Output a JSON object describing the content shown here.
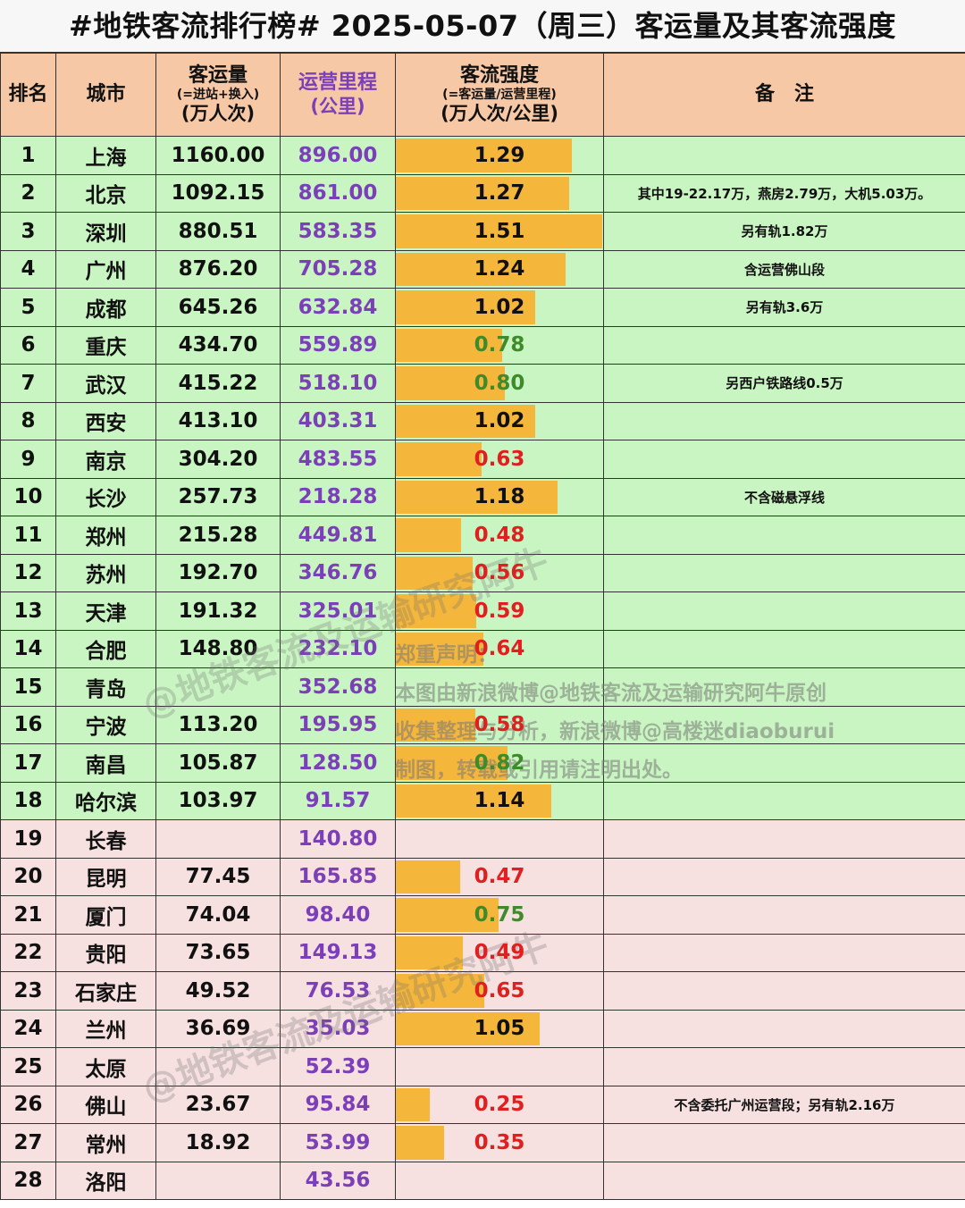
{
  "title": "#地铁客流排行榜# 2025-05-07（周三）客运量及其客流强度",
  "headers": {
    "rank": "排名",
    "city": "城市",
    "volume": "客运量",
    "volume_sub": "(=进站+换入)",
    "volume_unit": "(万人次)",
    "km": "运营里程",
    "km_unit": "(公里)",
    "intensity": "客流强度",
    "intensity_sub": "(=客运量/运营里程)",
    "intensity_unit": "(万人次/公里)",
    "note": "备　注"
  },
  "colors": {
    "header_bg": "#f6c8a6",
    "group_green": "#c9f5c2",
    "group_pink": "#f6e0e0",
    "bar": "#f5b73b",
    "km_text": "#7b3fb8",
    "intensity_high": "#111111",
    "intensity_mid": "#3f8a2a",
    "intensity_low": "#e02020"
  },
  "chart_data": {
    "type": "table",
    "title": "#地铁客流排行榜# 2025-05-07（周三）客运量及其客流强度",
    "bar_scale_max": 1.51,
    "rows": [
      {
        "rank": "1",
        "city": "上海",
        "volume": "1160.00",
        "km": "896.00",
        "intensity": "1.29",
        "value": 1.29,
        "group": "green",
        "note": ""
      },
      {
        "rank": "2",
        "city": "北京",
        "volume": "1092.15",
        "km": "861.00",
        "intensity": "1.27",
        "value": 1.27,
        "group": "green",
        "note": "其中19-22.17万，燕房2.79万，大机5.03万。"
      },
      {
        "rank": "3",
        "city": "深圳",
        "volume": "880.51",
        "km": "583.35",
        "intensity": "1.51",
        "value": 1.51,
        "group": "green",
        "note": "另有轨1.82万"
      },
      {
        "rank": "4",
        "city": "广州",
        "volume": "876.20",
        "km": "705.28",
        "intensity": "1.24",
        "value": 1.24,
        "group": "green",
        "note": "含运营佛山段"
      },
      {
        "rank": "5",
        "city": "成都",
        "volume": "645.26",
        "km": "632.84",
        "intensity": "1.02",
        "value": 1.02,
        "group": "green",
        "note": "另有轨3.6万"
      },
      {
        "rank": "6",
        "city": "重庆",
        "volume": "434.70",
        "km": "559.89",
        "intensity": "0.78",
        "value": 0.78,
        "group": "green",
        "note": ""
      },
      {
        "rank": "7",
        "city": "武汉",
        "volume": "415.22",
        "km": "518.10",
        "intensity": "0.80",
        "value": 0.8,
        "group": "green",
        "note": "另西户铁路线0.5万"
      },
      {
        "rank": "8",
        "city": "西安",
        "volume": "413.10",
        "km": "403.31",
        "intensity": "1.02",
        "value": 1.02,
        "group": "green",
        "note": ""
      },
      {
        "rank": "9",
        "city": "南京",
        "volume": "304.20",
        "km": "483.55",
        "intensity": "0.63",
        "value": 0.63,
        "group": "green",
        "note": ""
      },
      {
        "rank": "10",
        "city": "长沙",
        "volume": "257.73",
        "km": "218.28",
        "intensity": "1.18",
        "value": 1.18,
        "group": "green",
        "note": "不含磁悬浮线"
      },
      {
        "rank": "11",
        "city": "郑州",
        "volume": "215.28",
        "km": "449.81",
        "intensity": "0.48",
        "value": 0.48,
        "group": "green",
        "note": ""
      },
      {
        "rank": "12",
        "city": "苏州",
        "volume": "192.70",
        "km": "346.76",
        "intensity": "0.56",
        "value": 0.56,
        "group": "green",
        "note": ""
      },
      {
        "rank": "13",
        "city": "天津",
        "volume": "191.32",
        "km": "325.01",
        "intensity": "0.59",
        "value": 0.59,
        "group": "green",
        "note": ""
      },
      {
        "rank": "14",
        "city": "合肥",
        "volume": "148.80",
        "km": "232.10",
        "intensity": "0.64",
        "value": 0.64,
        "group": "green",
        "note": ""
      },
      {
        "rank": "15",
        "city": "青岛",
        "volume": "",
        "km": "352.68",
        "intensity": "",
        "value": null,
        "group": "green",
        "note": ""
      },
      {
        "rank": "16",
        "city": "宁波",
        "volume": "113.20",
        "km": "195.95",
        "intensity": "0.58",
        "value": 0.58,
        "group": "green",
        "note": ""
      },
      {
        "rank": "17",
        "city": "南昌",
        "volume": "105.87",
        "km": "128.50",
        "intensity": "0.82",
        "value": 0.82,
        "group": "green",
        "note": ""
      },
      {
        "rank": "18",
        "city": "哈尔滨",
        "volume": "103.97",
        "km": "91.57",
        "intensity": "1.14",
        "value": 1.14,
        "group": "green",
        "note": ""
      },
      {
        "rank": "19",
        "city": "长春",
        "volume": "",
        "km": "140.80",
        "intensity": "",
        "value": null,
        "group": "pink",
        "note": ""
      },
      {
        "rank": "20",
        "city": "昆明",
        "volume": "77.45",
        "km": "165.85",
        "intensity": "0.47",
        "value": 0.47,
        "group": "pink",
        "note": ""
      },
      {
        "rank": "21",
        "city": "厦门",
        "volume": "74.04",
        "km": "98.40",
        "intensity": "0.75",
        "value": 0.75,
        "group": "pink",
        "note": ""
      },
      {
        "rank": "22",
        "city": "贵阳",
        "volume": "73.65",
        "km": "149.13",
        "intensity": "0.49",
        "value": 0.49,
        "group": "pink",
        "note": ""
      },
      {
        "rank": "23",
        "city": "石家庄",
        "volume": "49.52",
        "km": "76.53",
        "intensity": "0.65",
        "value": 0.65,
        "group": "pink",
        "note": ""
      },
      {
        "rank": "24",
        "city": "兰州",
        "volume": "36.69",
        "km": "35.03",
        "intensity": "1.05",
        "value": 1.05,
        "group": "pink",
        "note": ""
      },
      {
        "rank": "25",
        "city": "太原",
        "volume": "",
        "km": "52.39",
        "intensity": "",
        "value": null,
        "group": "pink",
        "note": ""
      },
      {
        "rank": "26",
        "city": "佛山",
        "volume": "23.67",
        "km": "95.84",
        "intensity": "0.25",
        "value": 0.25,
        "group": "pink",
        "note": "不含委托广州运营段；另有轨2.16万"
      },
      {
        "rank": "27",
        "city": "常州",
        "volume": "18.92",
        "km": "53.99",
        "intensity": "0.35",
        "value": 0.35,
        "group": "pink",
        "note": ""
      },
      {
        "rank": "28",
        "city": "洛阳",
        "volume": "",
        "km": "43.56",
        "intensity": "",
        "value": null,
        "group": "pink",
        "note": ""
      }
    ]
  },
  "watermark": {
    "text": "@地铁客流及运输研究阿牛"
  },
  "notice": {
    "lines": [
      "郑重声明：",
      "本图由新浪微博@地铁客流及运输研究阿牛原创",
      "收集整理与分析，新浪微博@高楼迷diaoburui",
      "制图，转载或引用请注明出处。"
    ]
  }
}
